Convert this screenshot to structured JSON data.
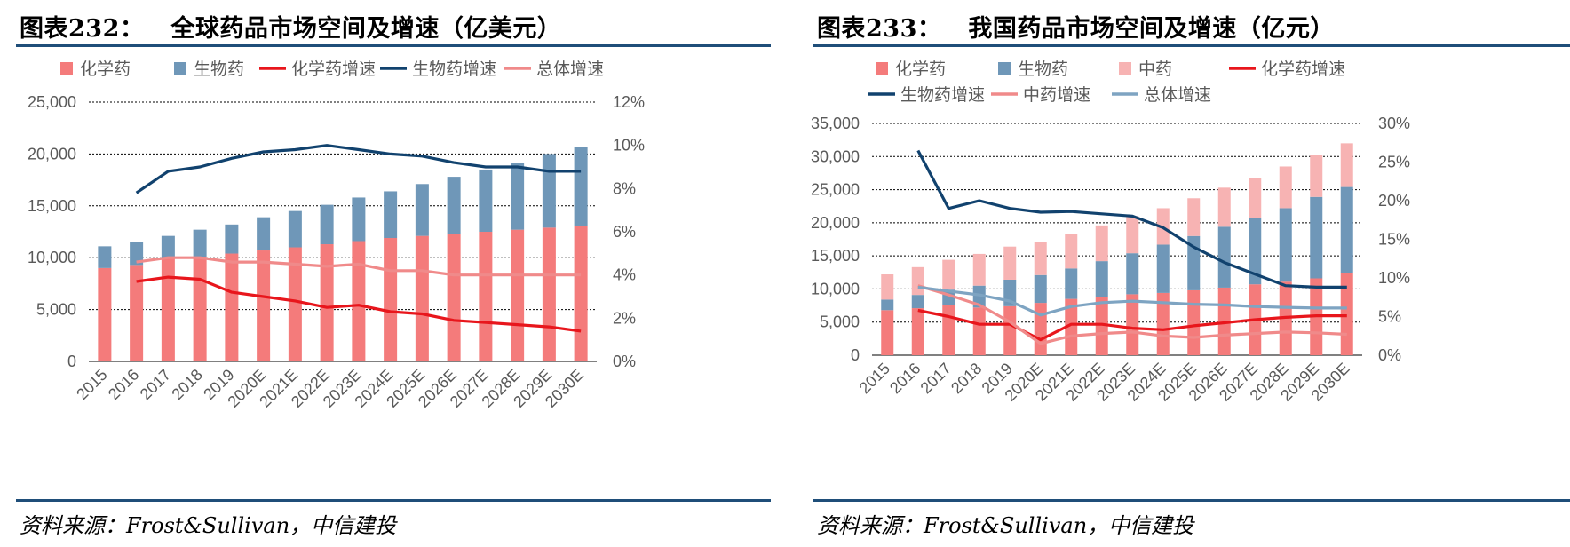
{
  "panels": [
    {
      "title_label": "图表232：",
      "title_text": "全球药品市场空间及增速（亿美元）",
      "source": "资料来源：Frost&Sullivan，中信建投"
    },
    {
      "title_label": "图表233：",
      "title_text": "我国药品市场空间及增速（亿元）",
      "source": "资料来源：Frost&Sullivan，中信建投"
    }
  ],
  "chart_data": [
    {
      "type": "bar",
      "stacked": true,
      "title": "全球药品市场空间及增速（亿美元）",
      "categories": [
        "2015",
        "2016",
        "2017",
        "2018",
        "2019",
        "2020E",
        "2021E",
        "2022E",
        "2023E",
        "2024E",
        "2025E",
        "2026E",
        "2027E",
        "2028E",
        "2029E",
        "2030E"
      ],
      "series": [
        {
          "name": "化学药",
          "kind": "bar",
          "axis": "left",
          "color": "#f47b7b",
          "values": [
            9000,
            9300,
            10000,
            10100,
            10400,
            10700,
            11000,
            11300,
            11600,
            11900,
            12100,
            12300,
            12500,
            12700,
            12900,
            13100
          ]
        },
        {
          "name": "生物药",
          "kind": "bar",
          "axis": "left",
          "color": "#6f97b8",
          "values": [
            2100,
            2200,
            2100,
            2600,
            2800,
            3200,
            3500,
            3800,
            4200,
            4500,
            5000,
            5500,
            6000,
            6400,
            7100,
            7600
          ]
        },
        {
          "name": "化学药增速",
          "kind": "line",
          "axis": "right",
          "color": "#e8161c",
          "values": [
            null,
            3.7,
            3.9,
            3.8,
            3.2,
            3.0,
            2.8,
            2.5,
            2.6,
            2.3,
            2.2,
            1.9,
            1.8,
            1.7,
            1.6,
            1.4
          ]
        },
        {
          "name": "生物药增速",
          "kind": "line",
          "axis": "right",
          "color": "#11426e",
          "values": [
            null,
            7.8,
            8.8,
            9.0,
            9.4,
            9.7,
            9.8,
            10.0,
            9.8,
            9.6,
            9.5,
            9.2,
            9.0,
            9.0,
            8.8,
            8.8
          ]
        },
        {
          "name": "总体增速",
          "kind": "line",
          "axis": "right",
          "color": "#f08a8a",
          "values": [
            null,
            4.6,
            4.8,
            4.8,
            4.6,
            4.6,
            4.5,
            4.4,
            4.5,
            4.2,
            4.2,
            4.0,
            4.0,
            4.0,
            4.0,
            4.0
          ]
        }
      ],
      "y_left": {
        "min": 0,
        "max": 25000,
        "ticks": [
          "0",
          "5,000",
          "10,000",
          "15,000",
          "20,000",
          "25,000"
        ]
      },
      "y_right": {
        "min": 0,
        "max": 12,
        "ticks": [
          "0%",
          "2%",
          "4%",
          "6%",
          "8%",
          "10%",
          "12%"
        ]
      },
      "legend_position": "top"
    },
    {
      "type": "bar",
      "stacked": true,
      "title": "我国药品市场空间及增速（亿元）",
      "categories": [
        "2015",
        "2016",
        "2017",
        "2018",
        "2019",
        "2020E",
        "2021E",
        "2022E",
        "2023E",
        "2024E",
        "2025E",
        "2026E",
        "2027E",
        "2028E",
        "2029E",
        "2030E"
      ],
      "series": [
        {
          "name": "化学药",
          "kind": "bar",
          "axis": "left",
          "color": "#f47b7b",
          "values": [
            6800,
            7100,
            7600,
            7200,
            7400,
            7900,
            8500,
            8800,
            9200,
            9400,
            9800,
            10200,
            10700,
            11100,
            11600,
            12400
          ]
        },
        {
          "name": "生物药",
          "kind": "bar",
          "axis": "left",
          "color": "#6f97b8",
          "values": [
            1600,
            2000,
            2300,
            3300,
            4000,
            4200,
            4600,
            5400,
            6200,
            7300,
            8200,
            9200,
            10000,
            11100,
            12300,
            13000
          ]
        },
        {
          "name": "中药",
          "kind": "bar",
          "axis": "left",
          "color": "#f7b3b3",
          "values": [
            3800,
            4200,
            4500,
            4800,
            5000,
            5000,
            5200,
            5400,
            5600,
            5500,
            5700,
            5900,
            6100,
            6300,
            6300,
            6600
          ]
        },
        {
          "name": "化学药增速",
          "kind": "line",
          "axis": "right",
          "color": "#e8161c",
          "values": [
            null,
            5.8,
            5.0,
            4.0,
            4.0,
            2.0,
            4.0,
            4.0,
            3.5,
            3.3,
            3.8,
            4.2,
            4.6,
            4.9,
            5.1,
            5.1
          ]
        },
        {
          "name": "生物药增速",
          "kind": "line",
          "axis": "right",
          "color": "#11426e",
          "values": [
            null,
            26.5,
            19.0,
            20.0,
            19.0,
            18.5,
            18.6,
            18.3,
            18.0,
            16.5,
            14.0,
            12.0,
            10.5,
            9.0,
            8.8,
            8.8
          ]
        },
        {
          "name": "中药增速",
          "kind": "line",
          "axis": "right",
          "color": "#f08a8a",
          "values": [
            null,
            9.0,
            7.8,
            6.5,
            4.3,
            1.5,
            2.5,
            2.8,
            3.0,
            2.5,
            2.3,
            2.6,
            2.8,
            3.0,
            2.9,
            2.7
          ]
        },
        {
          "name": "总体增速",
          "kind": "line",
          "axis": "right",
          "color": "#7ea4c2",
          "values": [
            null,
            8.8,
            8.3,
            7.8,
            7.0,
            5.2,
            6.3,
            6.8,
            7.0,
            6.8,
            6.6,
            6.5,
            6.3,
            6.2,
            6.1,
            6.1
          ]
        }
      ],
      "y_left": {
        "min": 0,
        "max": 35000,
        "ticks": [
          "0",
          "5,000",
          "10,000",
          "15,000",
          "20,000",
          "25,000",
          "30,000",
          "35,000"
        ]
      },
      "y_right": {
        "min": 0,
        "max": 30,
        "ticks": [
          "0%",
          "5%",
          "10%",
          "15%",
          "20%",
          "25%",
          "30%"
        ]
      },
      "legend_position": "top"
    }
  ]
}
